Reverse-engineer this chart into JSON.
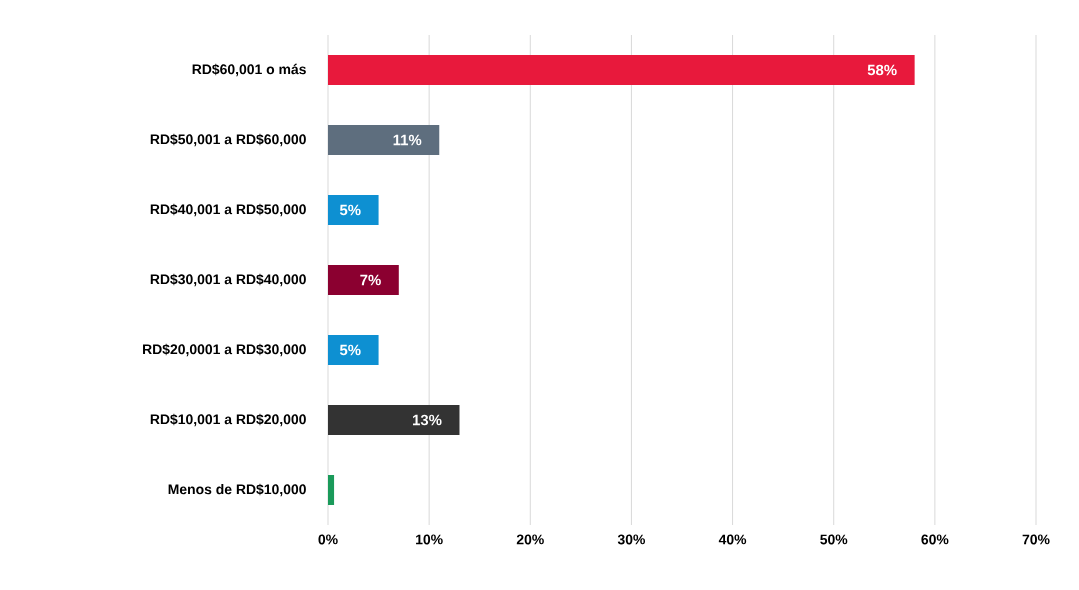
{
  "chart_data": {
    "type": "bar",
    "orientation": "horizontal",
    "categories": [
      "RD$60,001 o más",
      "RD$50,001 a RD$60,000",
      "RD$40,001 a RD$50,000",
      "RD$30,001 a RD$40,000",
      "RD$20,0001 a RD$30,000",
      "RD$10,001 a RD$20,000",
      "Menos de RD$10,000"
    ],
    "values": [
      58,
      11,
      5,
      7,
      5,
      13,
      0.6
    ],
    "value_labels": [
      "58%",
      "11%",
      "5%",
      "7%",
      "5%",
      "13%",
      null
    ],
    "colors": [
      "#e8193c",
      "#5e6e7e",
      "#0e90d2",
      "#8b0030",
      "#0e90d2",
      "#333333",
      "#1a9a5a"
    ],
    "xlim": [
      0,
      70
    ],
    "xticks": [
      {
        "value": 0,
        "label": "0%"
      },
      {
        "value": 10,
        "label": "10%"
      },
      {
        "value": 20,
        "label": "20%"
      },
      {
        "value": 30,
        "label": "30%"
      },
      {
        "value": 40,
        "label": "40%"
      },
      {
        "value": 50,
        "label": "50%"
      },
      {
        "value": 60,
        "label": "60%"
      },
      {
        "value": 70,
        "label": "70%"
      }
    ],
    "grid": "x"
  }
}
